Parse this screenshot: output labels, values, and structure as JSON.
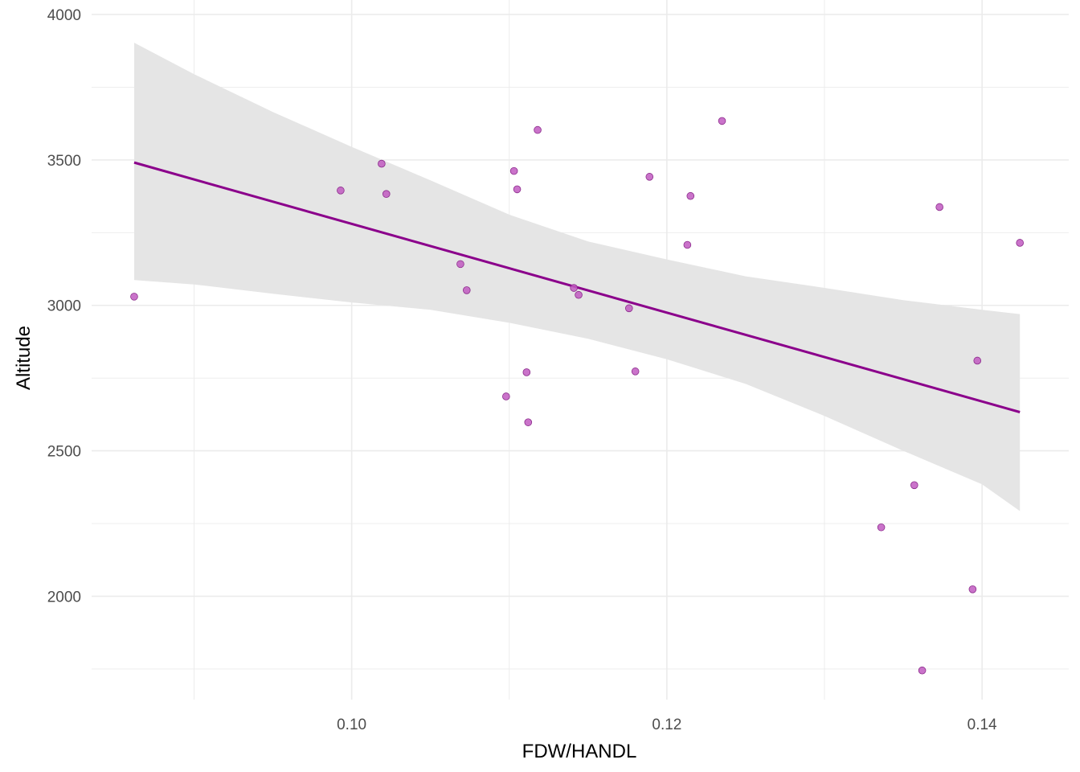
{
  "chart_data": {
    "type": "scatter",
    "xlabel": "FDW/HANDL",
    "ylabel": "Altitude",
    "xlim": [
      0.0835,
      0.1455
    ],
    "ylim": [
      1700,
      4000
    ],
    "x_ticks": [
      0.1,
      0.12,
      0.14
    ],
    "x_tick_labels": [
      "0.10",
      "0.12",
      "0.14"
    ],
    "y_ticks": [
      2000,
      2500,
      3000,
      3500,
      4000
    ],
    "y_tick_labels": [
      "2000",
      "2500",
      "3000",
      "3500",
      "4000"
    ],
    "grid": true,
    "legend": "none",
    "colors": {
      "point_fill": "#c15bc1",
      "point_stroke": "#8b2b8b",
      "line": "#8b008b",
      "band": "#e5e5e5",
      "grid": "#ebebeb"
    },
    "points": [
      {
        "x": 0.0862,
        "y": 3030
      },
      {
        "x": 0.0993,
        "y": 3395
      },
      {
        "x": 0.1019,
        "y": 3487
      },
      {
        "x": 0.1022,
        "y": 3383
      },
      {
        "x": 0.1069,
        "y": 3142
      },
      {
        "x": 0.1073,
        "y": 3052
      },
      {
        "x": 0.1098,
        "y": 2687
      },
      {
        "x": 0.1103,
        "y": 3462
      },
      {
        "x": 0.1105,
        "y": 3399
      },
      {
        "x": 0.1111,
        "y": 2770
      },
      {
        "x": 0.1112,
        "y": 2598
      },
      {
        "x": 0.1118,
        "y": 3603
      },
      {
        "x": 0.1141,
        "y": 3060
      },
      {
        "x": 0.1144,
        "y": 3036
      },
      {
        "x": 0.1176,
        "y": 2990
      },
      {
        "x": 0.118,
        "y": 2773
      },
      {
        "x": 0.1189,
        "y": 3442
      },
      {
        "x": 0.1213,
        "y": 3208
      },
      {
        "x": 0.1215,
        "y": 3376
      },
      {
        "x": 0.1235,
        "y": 3634
      },
      {
        "x": 0.1336,
        "y": 2237
      },
      {
        "x": 0.1357,
        "y": 2382
      },
      {
        "x": 0.1362,
        "y": 1745
      },
      {
        "x": 0.1373,
        "y": 3338
      },
      {
        "x": 0.1394,
        "y": 2024
      },
      {
        "x": 0.1397,
        "y": 2810
      },
      {
        "x": 0.1424,
        "y": 3215
      }
    ],
    "regression_line": [
      {
        "x": 0.0862,
        "y": 3491
      },
      {
        "x": 0.1424,
        "y": 2633
      }
    ],
    "confidence_band": {
      "x": [
        0.0862,
        0.09,
        0.095,
        0.1,
        0.105,
        0.11,
        0.115,
        0.12,
        0.125,
        0.13,
        0.135,
        0.14,
        0.1424
      ],
      "upper": [
        3903,
        3795,
        3665,
        3545,
        3430,
        3312,
        3220,
        3158,
        3100,
        3060,
        3018,
        2985,
        2970
      ],
      "lower": [
        3087,
        3072,
        3040,
        3010,
        2985,
        2940,
        2885,
        2815,
        2730,
        2620,
        2500,
        2385,
        2293
      ]
    }
  }
}
